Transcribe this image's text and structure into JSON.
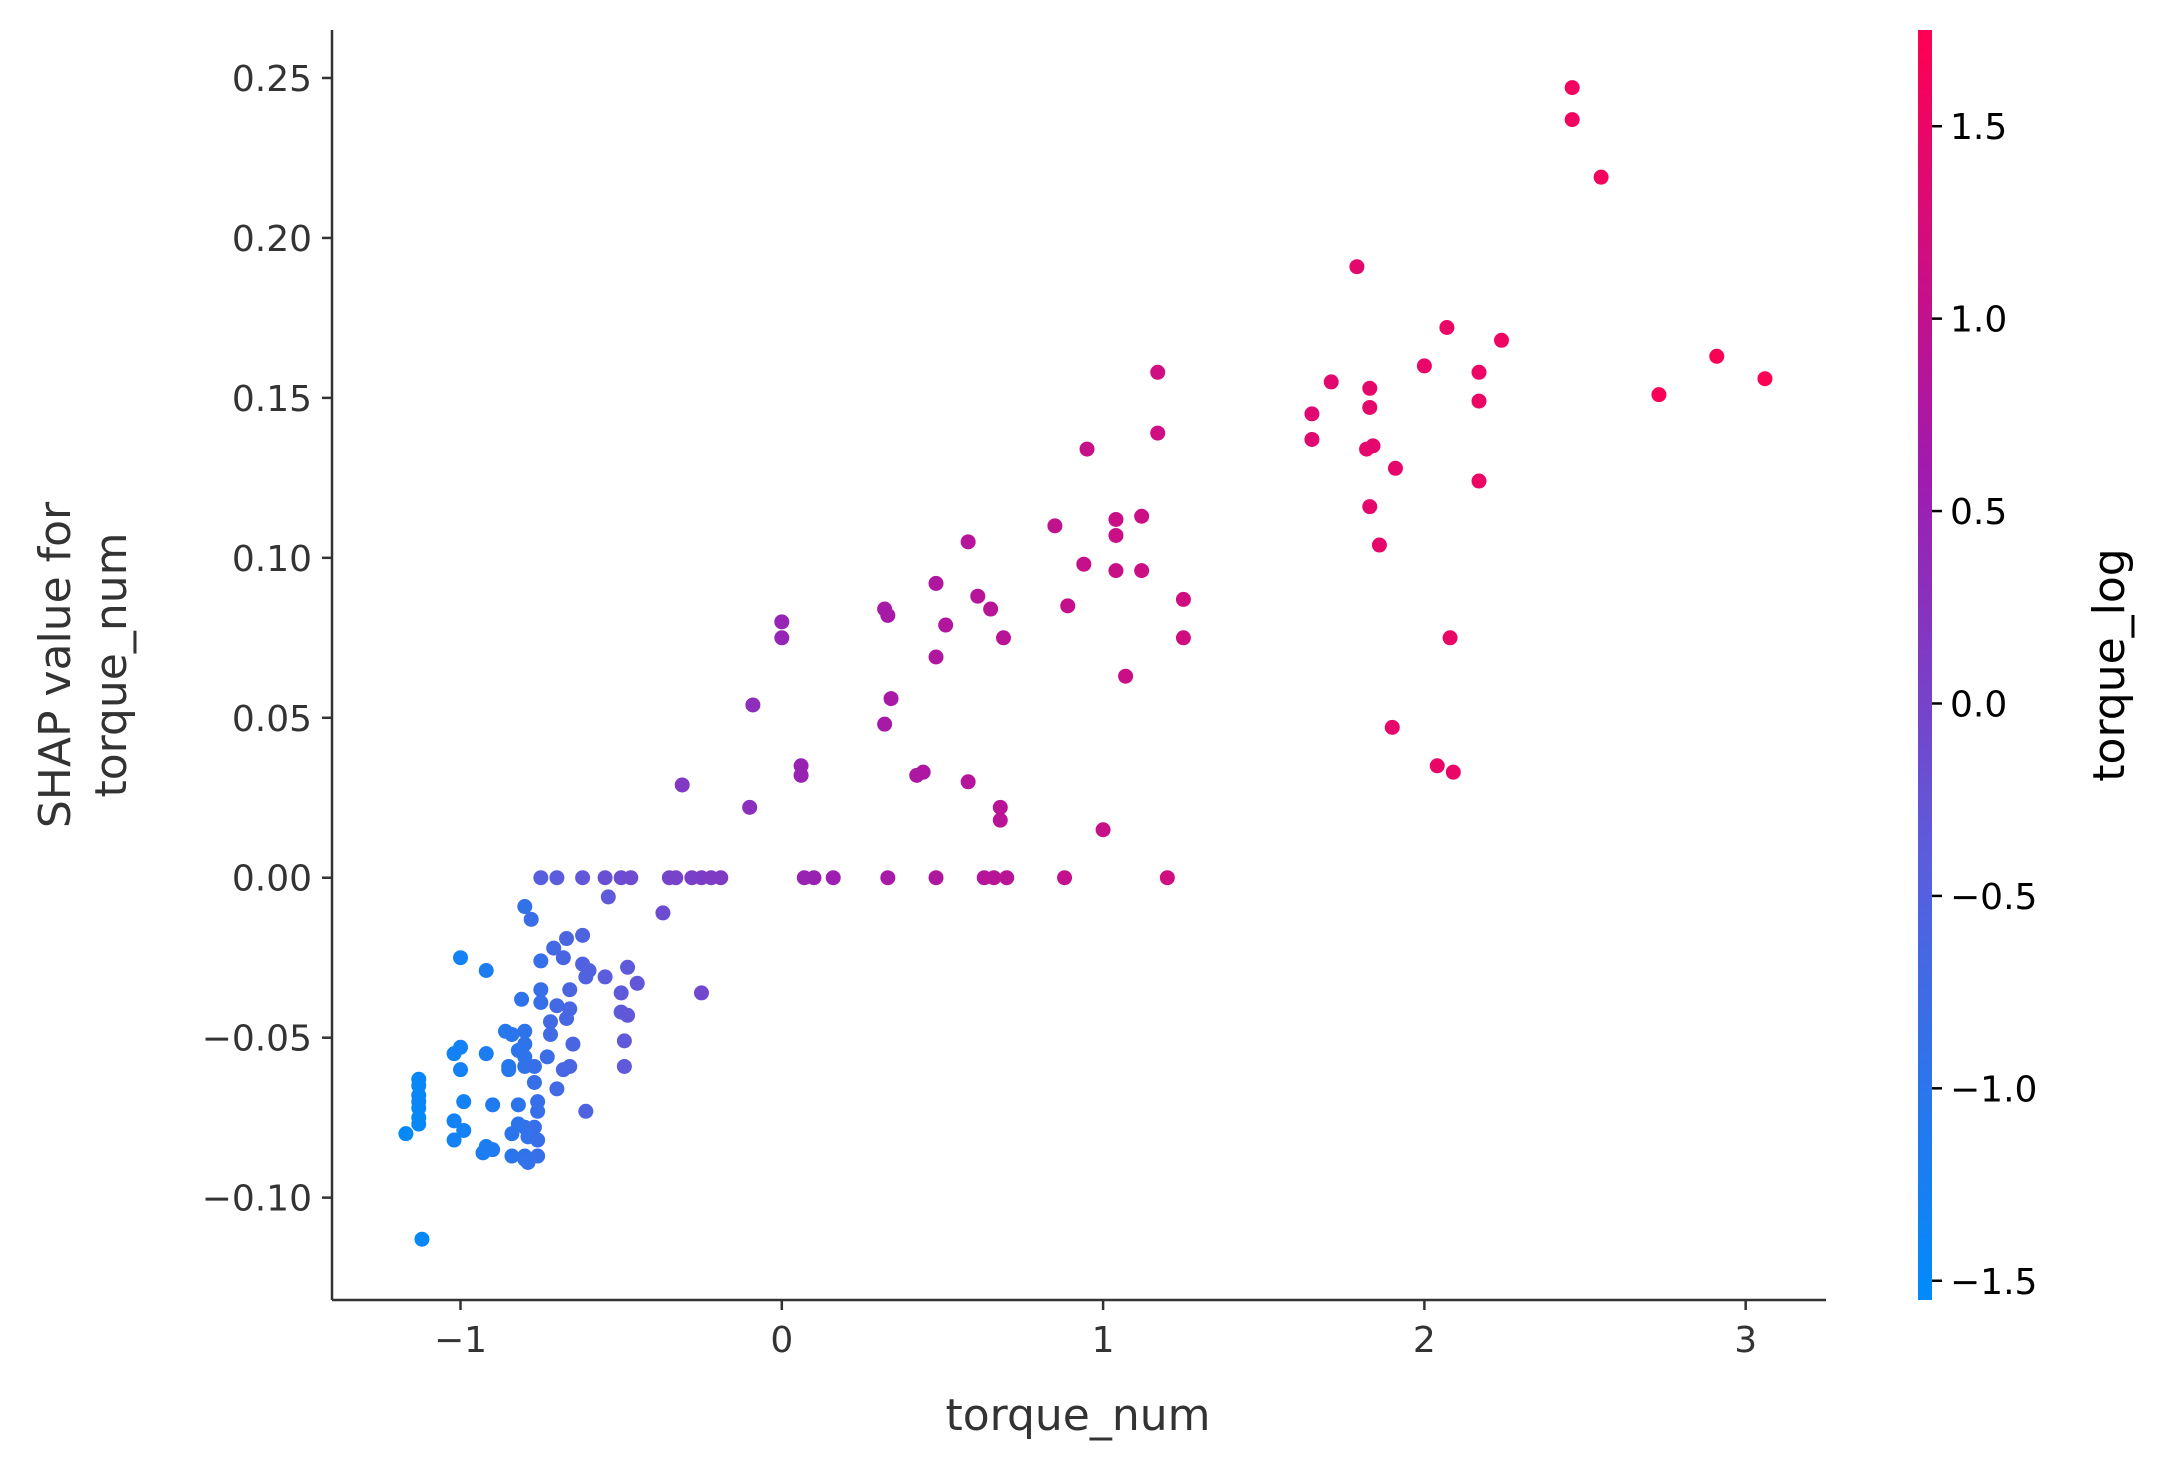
{
  "chart_data": {
    "type": "scatter",
    "title": "",
    "xlabel": "torque_num",
    "ylabel_lines": [
      "SHAP value for",
      "torque_num"
    ],
    "xlim": [
      -1.4,
      3.25
    ],
    "ylim": [
      -0.132,
      0.265
    ],
    "xticks": [
      -1,
      0,
      1,
      2,
      3
    ],
    "xtick_labels": [
      "−1",
      "0",
      "1",
      "2",
      "3"
    ],
    "yticks": [
      -0.1,
      -0.05,
      0.0,
      0.05,
      0.1,
      0.15,
      0.2,
      0.25
    ],
    "ytick_labels": [
      "−0.10",
      "−0.05",
      "0.00",
      "0.05",
      "0.10",
      "0.15",
      "0.20",
      "0.25"
    ],
    "grid": false,
    "colorbar": {
      "label": "torque_log",
      "range": [
        -1.55,
        1.75
      ],
      "ticks": [
        -1.5,
        -1.0,
        -0.5,
        0.0,
        0.5,
        1.0,
        1.5
      ],
      "tick_labels": [
        "−1.5",
        "−1.0",
        "−0.5",
        "0.0",
        "0.5",
        "1.0",
        "1.5"
      ],
      "colormap": [
        "#008bfa",
        "#5b5ddc",
        "#a01bae",
        "#ff0052"
      ]
    },
    "points": [
      [
        2.46,
        0.247,
        1.6
      ],
      [
        2.46,
        0.237,
        1.6
      ],
      [
        2.55,
        0.219,
        1.62
      ],
      [
        1.79,
        0.191,
        1.4
      ],
      [
        2.07,
        0.172,
        1.5
      ],
      [
        2.24,
        0.168,
        1.55
      ],
      [
        2.91,
        0.163,
        1.7
      ],
      [
        2.0,
        0.16,
        1.48
      ],
      [
        2.17,
        0.158,
        1.52
      ],
      [
        1.17,
        0.158,
        1.15
      ],
      [
        3.06,
        0.156,
        1.72
      ],
      [
        1.71,
        0.155,
        1.38
      ],
      [
        1.83,
        0.153,
        1.42
      ],
      [
        2.73,
        0.151,
        1.66
      ],
      [
        2.17,
        0.149,
        1.52
      ],
      [
        1.83,
        0.147,
        1.42
      ],
      [
        1.65,
        0.145,
        1.36
      ],
      [
        1.17,
        0.139,
        1.15
      ],
      [
        1.65,
        0.137,
        1.36
      ],
      [
        1.84,
        0.135,
        1.42
      ],
      [
        1.82,
        0.134,
        1.42
      ],
      [
        0.95,
        0.134,
        1.05
      ],
      [
        1.91,
        0.128,
        1.45
      ],
      [
        2.17,
        0.124,
        1.52
      ],
      [
        1.83,
        0.116,
        1.42
      ],
      [
        1.12,
        0.113,
        1.12
      ],
      [
        1.04,
        0.112,
        1.1
      ],
      [
        0.85,
        0.11,
        1.0
      ],
      [
        1.04,
        0.107,
        1.1
      ],
      [
        0.58,
        0.105,
        0.85
      ],
      [
        1.86,
        0.104,
        1.43
      ],
      [
        0.94,
        0.098,
        1.05
      ],
      [
        1.12,
        0.096,
        1.12
      ],
      [
        1.04,
        0.096,
        1.1
      ],
      [
        0.48,
        0.092,
        0.78
      ],
      [
        0.61,
        0.088,
        0.86
      ],
      [
        1.25,
        0.087,
        1.18
      ],
      [
        0.89,
        0.085,
        1.02
      ],
      [
        0.65,
        0.084,
        0.88
      ],
      [
        0.32,
        0.084,
        0.68
      ],
      [
        0.33,
        0.082,
        0.68
      ],
      [
        0.0,
        0.08,
        0.45
      ],
      [
        0.51,
        0.079,
        0.8
      ],
      [
        0.0,
        0.075,
        0.45
      ],
      [
        1.25,
        0.075,
        1.18
      ],
      [
        0.69,
        0.075,
        0.9
      ],
      [
        2.08,
        0.075,
        1.5
      ],
      [
        0.48,
        0.069,
        0.78
      ],
      [
        1.07,
        0.063,
        1.1
      ],
      [
        0.34,
        0.056,
        0.7
      ],
      [
        -0.09,
        0.054,
        0.3
      ],
      [
        0.32,
        0.048,
        0.68
      ],
      [
        1.9,
        0.047,
        1.45
      ],
      [
        2.04,
        0.035,
        1.49
      ],
      [
        0.06,
        0.035,
        0.48
      ],
      [
        2.09,
        0.033,
        1.5
      ],
      [
        0.44,
        0.033,
        0.75
      ],
      [
        0.42,
        0.032,
        0.74
      ],
      [
        0.06,
        0.032,
        0.48
      ],
      [
        0.58,
        0.03,
        0.85
      ],
      [
        -0.31,
        0.029,
        0.15
      ],
      [
        0.68,
        0.022,
        0.9
      ],
      [
        -0.1,
        0.022,
        0.3
      ],
      [
        0.68,
        0.018,
        0.9
      ],
      [
        1.0,
        0.015,
        1.08
      ],
      [
        -0.75,
        0.0,
        -0.45
      ],
      [
        -0.7,
        0.0,
        -0.4
      ],
      [
        -0.62,
        0.0,
        -0.3
      ],
      [
        -0.55,
        0.0,
        -0.2
      ],
      [
        -0.5,
        0.0,
        -0.15
      ],
      [
        -0.47,
        0.0,
        -0.12
      ],
      [
        -0.35,
        0.0,
        -0.02
      ],
      [
        -0.33,
        0.0,
        0.0
      ],
      [
        -0.28,
        0.0,
        0.05
      ],
      [
        -0.25,
        0.0,
        0.08
      ],
      [
        -0.22,
        0.0,
        0.1
      ],
      [
        -0.19,
        0.0,
        0.12
      ],
      [
        0.07,
        0.0,
        0.48
      ],
      [
        0.1,
        0.0,
        0.5
      ],
      [
        0.16,
        0.0,
        0.55
      ],
      [
        0.33,
        0.0,
        0.68
      ],
      [
        0.48,
        0.0,
        0.78
      ],
      [
        0.63,
        0.0,
        0.86
      ],
      [
        0.66,
        0.0,
        0.88
      ],
      [
        0.7,
        0.0,
        0.9
      ],
      [
        0.88,
        0.0,
        1.02
      ],
      [
        1.2,
        0.0,
        1.16
      ],
      [
        -0.8,
        -0.009,
        -0.9
      ],
      [
        -0.54,
        -0.006,
        -0.35
      ],
      [
        -0.78,
        -0.013,
        -0.8
      ],
      [
        -0.37,
        -0.011,
        -0.15
      ],
      [
        -0.62,
        -0.018,
        -0.55
      ],
      [
        -0.67,
        -0.019,
        -0.6
      ],
      [
        -0.71,
        -0.022,
        -0.7
      ],
      [
        -1.0,
        -0.025,
        -1.3
      ],
      [
        -0.75,
        -0.026,
        -0.85
      ],
      [
        -0.68,
        -0.025,
        -0.62
      ],
      [
        -0.62,
        -0.027,
        -0.55
      ],
      [
        -0.6,
        -0.029,
        -0.5
      ],
      [
        -0.61,
        -0.031,
        -0.52
      ],
      [
        -0.48,
        -0.028,
        -0.35
      ],
      [
        -0.55,
        -0.031,
        -0.4
      ],
      [
        -0.92,
        -0.029,
        -1.2
      ],
      [
        -0.75,
        -0.035,
        -0.85
      ],
      [
        -0.66,
        -0.035,
        -0.6
      ],
      [
        -0.45,
        -0.033,
        -0.3
      ],
      [
        -0.5,
        -0.036,
        -0.35
      ],
      [
        -0.25,
        -0.036,
        -0.1
      ],
      [
        -0.81,
        -0.038,
        -0.95
      ],
      [
        -0.75,
        -0.039,
        -0.85
      ],
      [
        -0.7,
        -0.04,
        -0.7
      ],
      [
        -0.66,
        -0.041,
        -0.65
      ],
      [
        -0.5,
        -0.042,
        -0.35
      ],
      [
        -0.48,
        -0.043,
        -0.32
      ],
      [
        -0.72,
        -0.045,
        -0.72
      ],
      [
        -0.67,
        -0.044,
        -0.65
      ],
      [
        -0.86,
        -0.048,
        -1.05
      ],
      [
        -0.84,
        -0.049,
        -1.0
      ],
      [
        -0.8,
        -0.048,
        -0.95
      ],
      [
        -0.72,
        -0.049,
        -0.75
      ],
      [
        -0.49,
        -0.051,
        -0.33
      ],
      [
        -0.8,
        -0.052,
        -0.95
      ],
      [
        -0.65,
        -0.052,
        -0.62
      ],
      [
        -1.0,
        -0.053,
        -1.3
      ],
      [
        -0.82,
        -0.054,
        -1.0
      ],
      [
        -1.02,
        -0.055,
        -1.32
      ],
      [
        -0.92,
        -0.055,
        -1.2
      ],
      [
        -0.8,
        -0.056,
        -0.95
      ],
      [
        -0.73,
        -0.056,
        -0.8
      ],
      [
        -0.85,
        -0.059,
        -1.05
      ],
      [
        -0.8,
        -0.059,
        -0.95
      ],
      [
        -0.66,
        -0.059,
        -0.6
      ],
      [
        -0.49,
        -0.059,
        -0.33
      ],
      [
        -1.0,
        -0.06,
        -1.3
      ],
      [
        -0.85,
        -0.06,
        -1.05
      ],
      [
        -0.77,
        -0.059,
        -0.85
      ],
      [
        -0.68,
        -0.06,
        -0.65
      ],
      [
        -1.13,
        -0.063,
        -1.45
      ],
      [
        -1.13,
        -0.065,
        -1.45
      ],
      [
        -0.77,
        -0.064,
        -0.85
      ],
      [
        -1.13,
        -0.068,
        -1.45
      ],
      [
        -0.7,
        -0.066,
        -0.7
      ],
      [
        -1.13,
        -0.07,
        -1.45
      ],
      [
        -0.76,
        -0.07,
        -0.85
      ],
      [
        -1.13,
        -0.072,
        -1.45
      ],
      [
        -0.82,
        -0.071,
        -1.0
      ],
      [
        -0.76,
        -0.073,
        -0.85
      ],
      [
        -0.61,
        -0.073,
        -0.55
      ],
      [
        -1.13,
        -0.075,
        -1.45
      ],
      [
        -1.02,
        -0.076,
        -1.32
      ],
      [
        -0.99,
        -0.07,
        -1.3
      ],
      [
        -0.9,
        -0.071,
        -1.15
      ],
      [
        -1.13,
        -0.077,
        -1.45
      ],
      [
        -0.82,
        -0.077,
        -1.0
      ],
      [
        -0.8,
        -0.078,
        -0.95
      ],
      [
        -0.77,
        -0.078,
        -0.85
      ],
      [
        -1.17,
        -0.08,
        -1.5
      ],
      [
        -0.99,
        -0.079,
        -1.3
      ],
      [
        -0.84,
        -0.08,
        -1.0
      ],
      [
        -0.79,
        -0.081,
        -0.92
      ],
      [
        -1.02,
        -0.082,
        -1.32
      ],
      [
        -0.76,
        -0.082,
        -0.85
      ],
      [
        -0.92,
        -0.084,
        -1.2
      ],
      [
        -0.93,
        -0.086,
        -1.2
      ],
      [
        -0.9,
        -0.085,
        -1.15
      ],
      [
        -0.84,
        -0.087,
        -1.0
      ],
      [
        -0.8,
        -0.087,
        -0.95
      ],
      [
        -0.76,
        -0.087,
        -0.85
      ],
      [
        -0.8,
        -0.088,
        -0.95
      ],
      [
        -0.79,
        -0.089,
        -0.92
      ],
      [
        -1.12,
        -0.113,
        -1.45
      ]
    ]
  }
}
